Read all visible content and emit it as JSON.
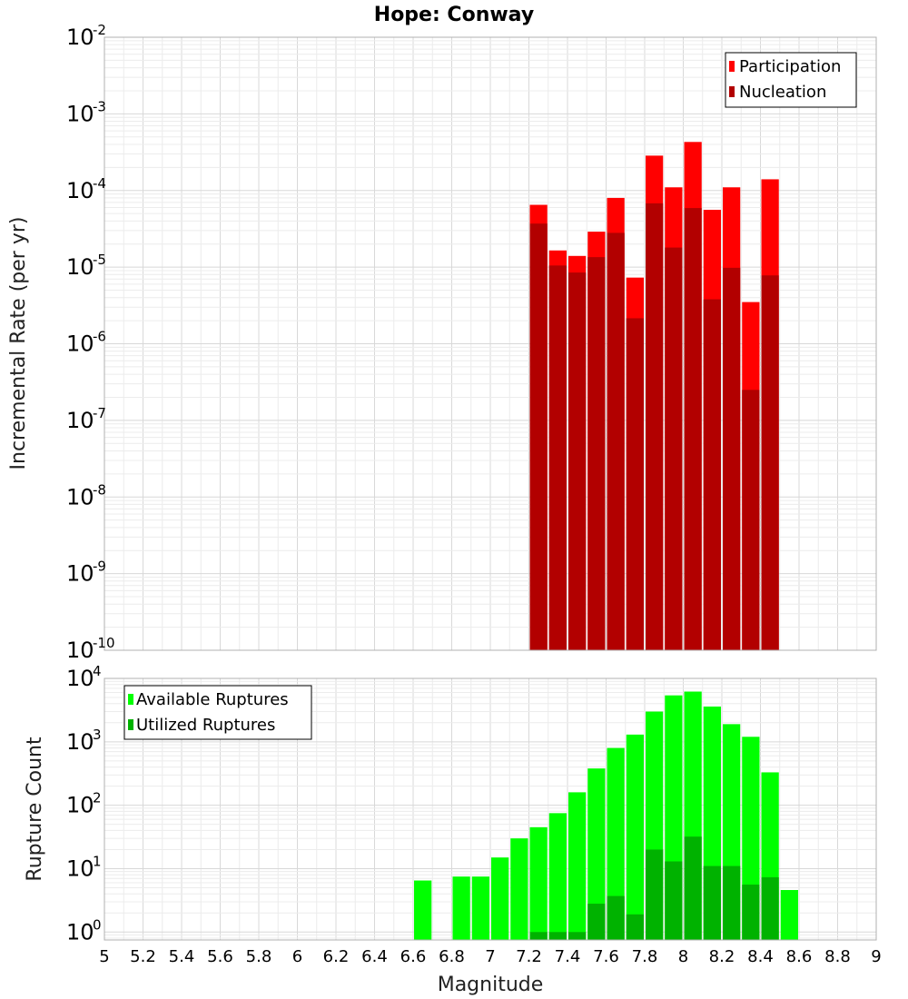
{
  "chart_data": [
    {
      "type": "bar",
      "title": "Hope: Conway",
      "ylabel": "Incremental Rate (per yr)",
      "xlabel": "",
      "yscale": "log",
      "ylim": [
        1e-10,
        0.01
      ],
      "xlim": [
        5,
        9
      ],
      "legend_position": "top-right",
      "bin_width": 0.1,
      "categories": [
        7.25,
        7.35,
        7.45,
        7.55,
        7.65,
        7.75,
        7.85,
        7.95,
        8.05,
        8.15,
        8.25,
        8.35,
        8.45
      ],
      "series": [
        {
          "name": "Participation",
          "color": "#ff0000",
          "values": [
            6.5e-05,
            1.65e-05,
            1.4e-05,
            2.9e-05,
            8e-05,
            7.3e-06,
            0.000285,
            0.00011,
            0.00043,
            5.6e-05,
            0.00011,
            3.5e-06,
            0.00014
          ]
        },
        {
          "name": "Nucleation",
          "color": "#b20000",
          "values": [
            3.7e-05,
            1.05e-05,
            8.5e-06,
            1.35e-05,
            2.8e-05,
            2.15e-06,
            6.8e-05,
            1.8e-05,
            5.9e-05,
            3.8e-06,
            9.8e-06,
            2.5e-07,
            7.8e-06
          ]
        }
      ],
      "y_tick_labels": [
        {
          "base": "10",
          "exp": "-2",
          "value": 0.01
        },
        {
          "base": "10",
          "exp": "-3",
          "value": 0.001
        },
        {
          "base": "10",
          "exp": "-4",
          "value": 0.0001
        },
        {
          "base": "10",
          "exp": "-5",
          "value": 1e-05
        },
        {
          "base": "10",
          "exp": "-6",
          "value": 1e-06
        },
        {
          "base": "10",
          "exp": "-7",
          "value": 1e-07
        },
        {
          "base": "10",
          "exp": "-8",
          "value": 1e-08
        },
        {
          "base": "10",
          "exp": "-9",
          "value": 1e-09
        },
        {
          "base": "10",
          "exp": "-10",
          "value": 1e-10
        }
      ]
    },
    {
      "type": "bar",
      "title": "",
      "ylabel": "Rupture Count",
      "xlabel": "Magnitude",
      "yscale": "log",
      "ylim": [
        0.75,
        10000
      ],
      "xlim": [
        5,
        9
      ],
      "legend_position": "top-left",
      "bin_width": 0.1,
      "categories": [
        6.65,
        6.75,
        6.85,
        6.95,
        7.05,
        7.15,
        7.25,
        7.35,
        7.45,
        7.55,
        7.65,
        7.75,
        7.85,
        7.95,
        8.05,
        8.15,
        8.25,
        8.35,
        8.45,
        8.55
      ],
      "series": [
        {
          "name": "Available Ruptures",
          "color": "#00ff00",
          "values": [
            6.5,
            0,
            7.5,
            7.5,
            15,
            30,
            45,
            75,
            160,
            380,
            800,
            1300,
            3000,
            5400,
            6200,
            3600,
            1900,
            1200,
            330,
            4.6
          ]
        },
        {
          "name": "Utilized Ruptures",
          "color": "#00b200",
          "values": [
            0,
            0,
            0,
            0,
            0,
            0,
            1,
            1,
            1,
            2.8,
            3.7,
            1.9,
            20,
            13,
            32,
            11,
            11,
            5.6,
            7.3,
            0
          ]
        }
      ],
      "y_tick_labels": [
        {
          "base": "10",
          "exp": "4",
          "value": 10000
        },
        {
          "base": "10",
          "exp": "3",
          "value": 1000
        },
        {
          "base": "10",
          "exp": "2",
          "value": 100
        },
        {
          "base": "10",
          "exp": "1",
          "value": 10
        },
        {
          "base": "10",
          "exp": "0",
          "value": 1
        }
      ],
      "x_tick_labels": [
        "5",
        "5.2",
        "5.4",
        "5.6",
        "5.8",
        "6",
        "6.2",
        "6.4",
        "6.6",
        "6.8",
        "7",
        "7.2",
        "7.4",
        "7.6",
        "7.8",
        "8",
        "8.2",
        "8.4",
        "8.6",
        "8.8",
        "9"
      ]
    }
  ]
}
